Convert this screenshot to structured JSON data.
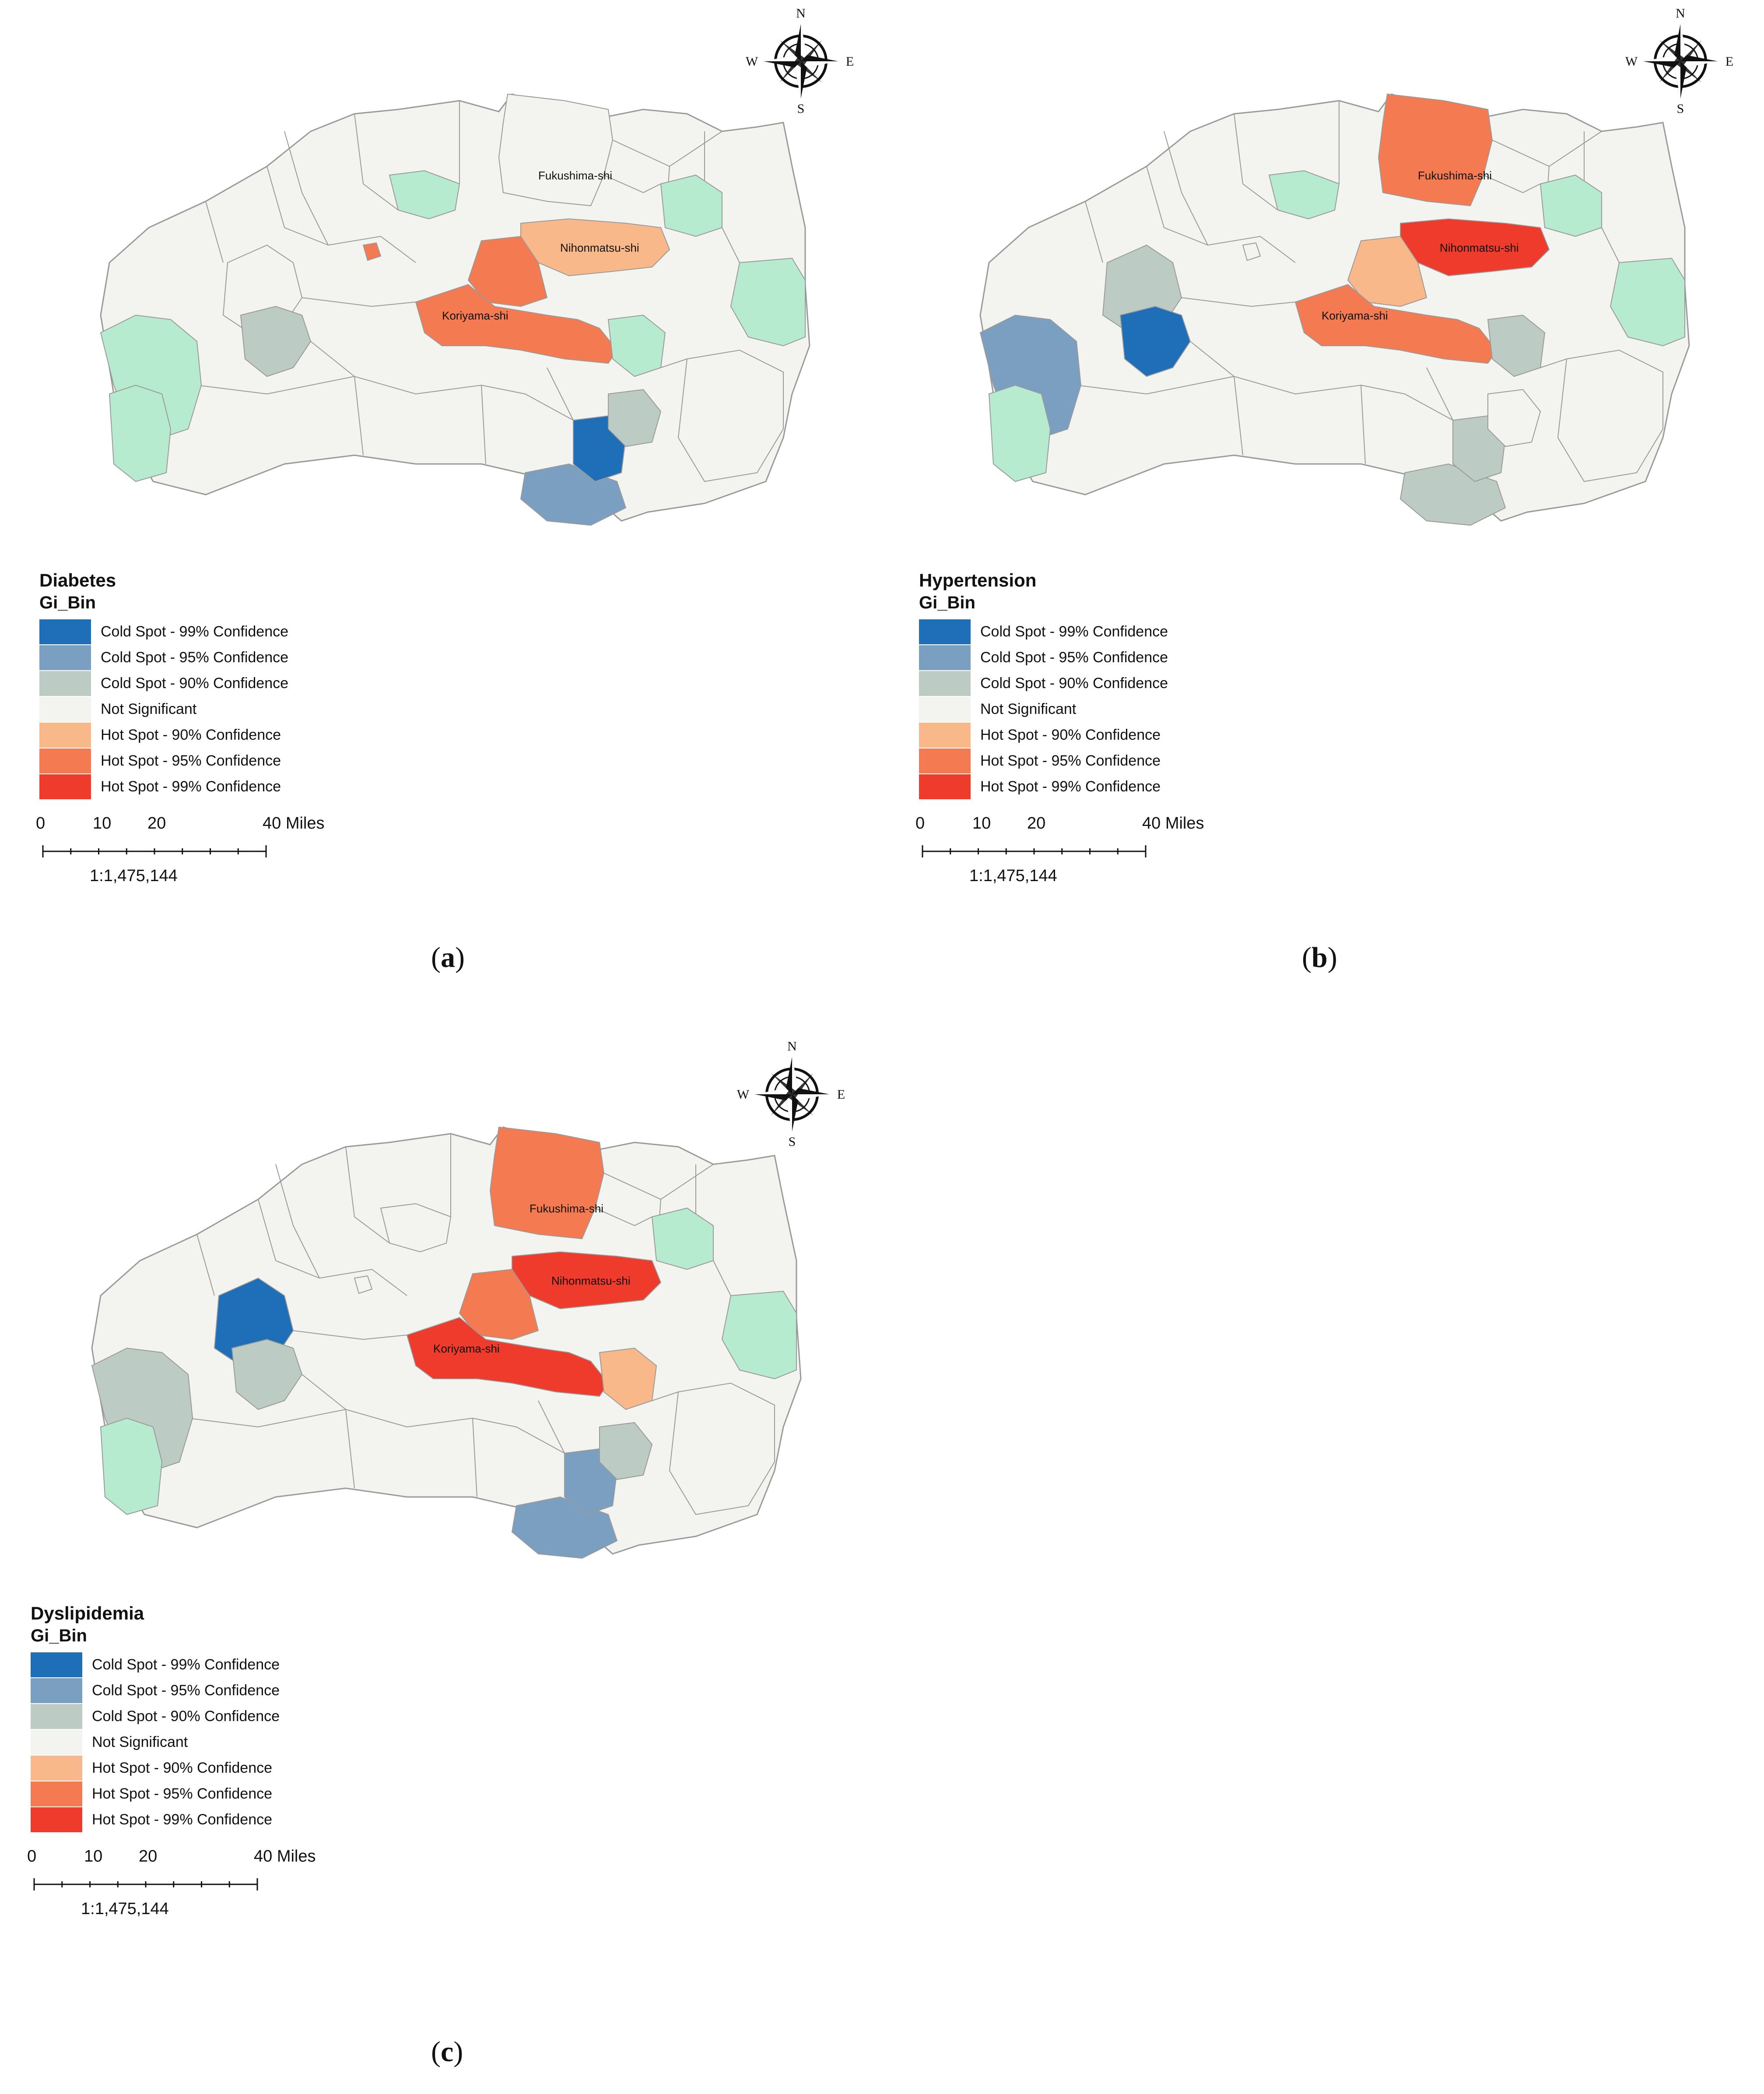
{
  "legend_common": {
    "field": "Gi_Bin",
    "categories": [
      {
        "label": "Cold Spot - 99% Confidence",
        "color": "#1f6fb8"
      },
      {
        "label": "Cold Spot - 95% Confidence",
        "color": "#7a9fc0"
      },
      {
        "label": "Cold Spot - 90% Confidence",
        "color": "#bccbc3"
      },
      {
        "label": "Not Significant",
        "color": "#f3f3ef"
      },
      {
        "label": "Hot Spot - 90% Confidence",
        "color": "#f9b88a"
      },
      {
        "label": "Hot Spot - 95% Confidence",
        "color": "#f47a52"
      },
      {
        "label": "Hot Spot - 99% Confidence",
        "color": "#ef3b2c"
      }
    ],
    "extra_colors": {
      "light_green": "#b6ebd0",
      "boundary": "#9a9a9a"
    }
  },
  "scale": {
    "ticks": [
      "0",
      "10",
      "20",
      "40 Miles"
    ],
    "ratio": "1:1,475,144"
  },
  "compass": {
    "n": "N",
    "s": "S",
    "w": "W",
    "e": "E"
  },
  "panels": [
    {
      "id": "a",
      "title": "Diabetes",
      "caption_letter": "a",
      "labels": {
        "fukushima": "Fukushima-shi",
        "nihonmatsu": "Nihonmatsu-shi",
        "koriyama": "Koriyama-shi"
      },
      "region_classes": {
        "fukushima": "not",
        "nihonmatsu": "hot90",
        "koriyama": "hot95",
        "nihonmatsu_south": "hot95",
        "aizu_northwest": "not",
        "aizu_southwest": "green",
        "minamiaizu": "green",
        "central_west": "cold90",
        "central_north_patch": "green",
        "east_north": "green",
        "soma_coast": "green",
        "sukagawa_south": "green",
        "shirakawa": "cold95",
        "tanagura": "cold99",
        "hanawa": "cold90",
        "iwaki": "not",
        "small_west": "hot95"
      }
    },
    {
      "id": "b",
      "title": "Hypertension",
      "caption_letter": "b",
      "labels": {
        "fukushima": "Fukushima-shi",
        "nihonmatsu": "Nihonmatsu-shi",
        "koriyama": "Koriyama-shi"
      },
      "region_classes": {
        "fukushima": "hot95",
        "nihonmatsu": "hot99",
        "koriyama": "hot95",
        "nihonmatsu_south": "hot90",
        "aizu_northwest": "cold90",
        "aizu_southwest": "cold95",
        "minamiaizu": "green",
        "central_west": "cold99",
        "central_north_patch": "green",
        "east_north": "green",
        "soma_coast": "green",
        "sukagawa_south": "cold90",
        "shirakawa": "cold90",
        "tanagura": "cold90",
        "hanawa": "not",
        "iwaki": "not",
        "small_west": "not"
      }
    },
    {
      "id": "c",
      "title": "Dyslipidemia",
      "caption_letter": "c",
      "labels": {
        "fukushima": "Fukushima-shi",
        "nihonmatsu": "Nihonmatsu-shi",
        "koriyama": "Koriyama-shi"
      },
      "region_classes": {
        "fukushima": "hot95",
        "nihonmatsu": "hot99",
        "koriyama": "hot99",
        "nihonmatsu_south": "hot95",
        "aizu_northwest": "cold99",
        "aizu_southwest": "cold90",
        "minamiaizu": "green",
        "central_west": "cold90",
        "central_north_patch": "not",
        "east_north": "green",
        "soma_coast": "green",
        "sukagawa_south": "hot90",
        "shirakawa": "cold95",
        "tanagura": "cold95",
        "hanawa": "cold90",
        "iwaki": "not",
        "small_west": "not"
      }
    }
  ]
}
